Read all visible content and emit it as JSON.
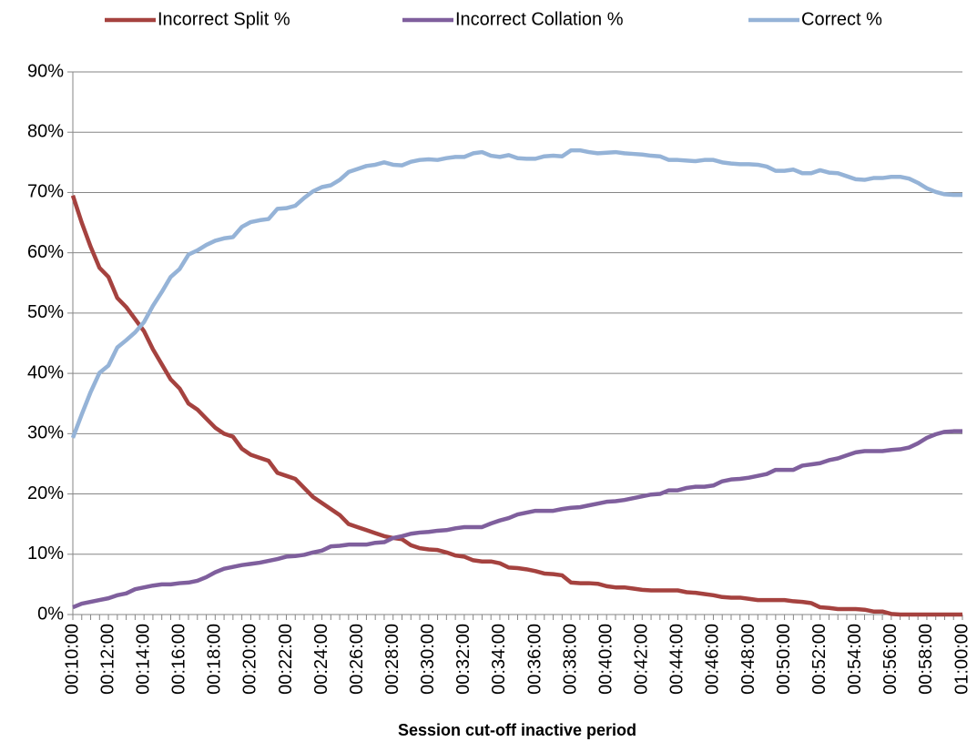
{
  "chart_data": {
    "type": "line",
    "xlabel": "Session cut-off inactive period",
    "categories": [
      "00:10:00",
      null,
      null,
      null,
      "00:12:00",
      null,
      null,
      null,
      "00:14:00",
      null,
      null,
      null,
      "00:16:00",
      null,
      null,
      null,
      "00:18:00",
      null,
      null,
      null,
      "00:20:00",
      null,
      null,
      null,
      "00:22:00",
      null,
      null,
      null,
      "00:24:00",
      null,
      null,
      null,
      "00:26:00",
      null,
      null,
      null,
      "00:28:00",
      null,
      null,
      null,
      "00:30:00",
      null,
      null,
      null,
      "00:32:00",
      null,
      null,
      null,
      "00:34:00",
      null,
      null,
      null,
      "00:36:00",
      null,
      null,
      null,
      "00:38:00",
      null,
      null,
      null,
      "00:40:00",
      null,
      null,
      null,
      "00:42:00",
      null,
      null,
      null,
      "00:44:00",
      null,
      null,
      null,
      "00:46:00",
      null,
      null,
      null,
      "00:48:00",
      null,
      null,
      null,
      "00:50:00",
      null,
      null,
      null,
      "00:52:00",
      null,
      null,
      null,
      "00:54:00",
      null,
      null,
      null,
      "00:56:00",
      null,
      null,
      null,
      "00:58:00",
      null,
      null,
      null,
      "01:00:00"
    ],
    "series": [
      {
        "name": "Incorrect Split %",
        "color": "#a5423f",
        "values": [
          69.5,
          65,
          61,
          57.5,
          56,
          52.5,
          51,
          49,
          47,
          44,
          41.5,
          39,
          37.5,
          35,
          34,
          32.5,
          31,
          30,
          29.5,
          27.5,
          26.5,
          26,
          25.5,
          23.5,
          23,
          22.5,
          21,
          19.5,
          18.5,
          17.5,
          16.5,
          15,
          14.5,
          14,
          13.5,
          13,
          12.7,
          12.5,
          11.5,
          11,
          10.8,
          10.7,
          10.3,
          9.8,
          9.6,
          9,
          8.8,
          8.8,
          8.5,
          7.8,
          7.7,
          7.5,
          7.2,
          6.8,
          6.7,
          6.5,
          5.3,
          5.2,
          5.2,
          5.1,
          4.7,
          4.5,
          4.5,
          4.3,
          4.1,
          4,
          4,
          4,
          4,
          3.7,
          3.6,
          3.4,
          3.2,
          2.9,
          2.8,
          2.8,
          2.6,
          2.4,
          2.4,
          2.4,
          2.4,
          2.2,
          2.1,
          1.9,
          1.2,
          1.1,
          0.9,
          0.9,
          0.9,
          0.8,
          0.5,
          0.5,
          0.1,
          0,
          0,
          0,
          0,
          0,
          0,
          0,
          0
        ]
      },
      {
        "name": "Incorrect Collation %",
        "color": "#7f5f9d",
        "values": [
          1.2,
          1.8,
          2.1,
          2.4,
          2.7,
          3.2,
          3.5,
          4.2,
          4.5,
          4.8,
          5,
          5,
          5.2,
          5.3,
          5.6,
          6.2,
          7,
          7.6,
          7.9,
          8.2,
          8.4,
          8.6,
          8.9,
          9.2,
          9.6,
          9.7,
          9.9,
          10.3,
          10.6,
          11.3,
          11.4,
          11.6,
          11.6,
          11.6,
          11.9,
          12,
          12.7,
          13,
          13.4,
          13.6,
          13.7,
          13.9,
          14,
          14.3,
          14.5,
          14.5,
          14.5,
          15.1,
          15.6,
          16,
          16.6,
          16.9,
          17.2,
          17.2,
          17.2,
          17.5,
          17.7,
          17.8,
          18.1,
          18.4,
          18.7,
          18.8,
          19,
          19.3,
          19.6,
          19.9,
          20,
          20.6,
          20.6,
          21,
          21.2,
          21.2,
          21.4,
          22.1,
          22.4,
          22.5,
          22.7,
          23,
          23.3,
          24,
          24,
          24,
          24.7,
          24.9,
          25.1,
          25.6,
          25.9,
          26.4,
          26.9,
          27.1,
          27.1,
          27.1,
          27.3,
          27.4,
          27.7,
          28.4,
          29.3,
          29.9,
          30.3,
          30.4,
          30.4
        ]
      },
      {
        "name": "Correct %",
        "color": "#95b3d7",
        "values": [
          29.3,
          33.2,
          36.9,
          40.1,
          41.3,
          44.3,
          45.5,
          46.8,
          48.5,
          51.2,
          53.5,
          56,
          57.3,
          59.7,
          60.4,
          61.3,
          62,
          62.4,
          62.6,
          64.3,
          65.1,
          65.4,
          65.6,
          67.3,
          67.4,
          67.8,
          69.1,
          70.2,
          70.9,
          71.2,
          72.1,
          73.4,
          73.9,
          74.4,
          74.6,
          75,
          74.6,
          74.5,
          75.1,
          75.4,
          75.5,
          75.4,
          75.7,
          75.9,
          75.9,
          76.5,
          76.7,
          76.1,
          75.9,
          76.2,
          75.7,
          75.6,
          75.6,
          76,
          76.1,
          76,
          77,
          77,
          76.7,
          76.5,
          76.6,
          76.7,
          76.5,
          76.4,
          76.3,
          76.1,
          76,
          75.4,
          75.4,
          75.3,
          75.2,
          75.4,
          75.4,
          75,
          74.8,
          74.7,
          74.7,
          74.6,
          74.3,
          73.6,
          73.6,
          73.8,
          73.2,
          73.2,
          73.7,
          73.3,
          73.2,
          72.7,
          72.2,
          72.1,
          72.4,
          72.4,
          72.6,
          72.6,
          72.3,
          71.6,
          70.7,
          70.1,
          69.7,
          69.6,
          69.6
        ]
      }
    ],
    "ylim": [
      0,
      90
    ],
    "yticks": [
      {
        "value": 0,
        "label": "0%"
      },
      {
        "value": 10,
        "label": "10%"
      },
      {
        "value": 20,
        "label": "20%"
      },
      {
        "value": 30,
        "label": "30%"
      },
      {
        "value": 40,
        "label": "40%"
      },
      {
        "value": 50,
        "label": "50%"
      },
      {
        "value": 60,
        "label": "60%"
      },
      {
        "value": 70,
        "label": "70%"
      },
      {
        "value": 80,
        "label": "80%"
      },
      {
        "value": 90,
        "label": "90%"
      }
    ],
    "grid": true,
    "legend": "top"
  }
}
